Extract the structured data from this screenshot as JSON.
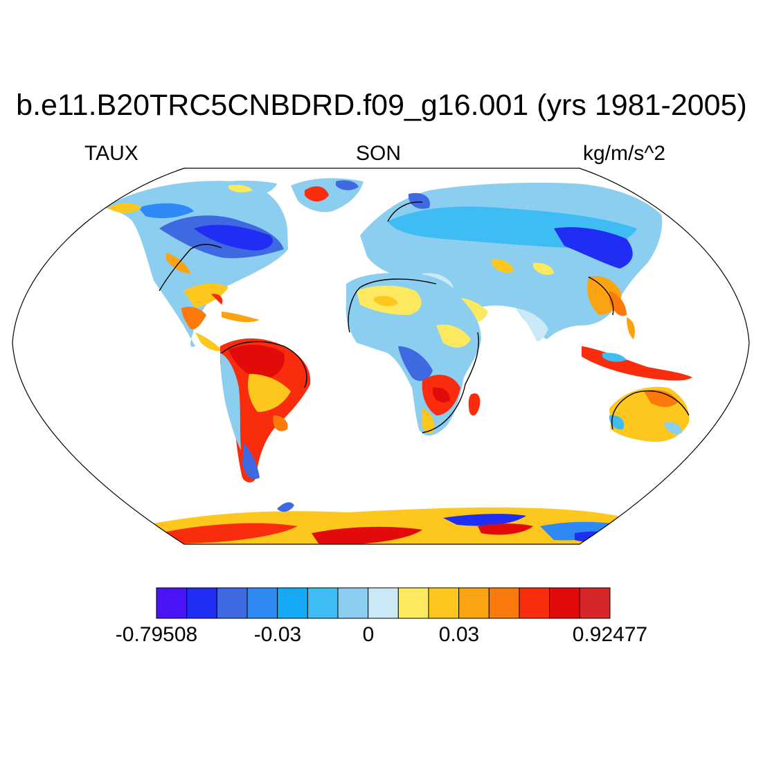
{
  "title": "b.e11.B20TRC5CNBDRD.f09_g16.001 (yrs 1981-2005)",
  "left_string": "TAUX",
  "center_string": "SON",
  "right_string": "kg/m/s^2",
  "projection": "Robinson",
  "colorbar": {
    "colors": [
      "#4a14f6",
      "#1f2ef2",
      "#3f69e0",
      "#2e89f4",
      "#16aaf6",
      "#3fbcf3",
      "#8ccef0",
      "#cbe8f6",
      "#fde95f",
      "#fdc71e",
      "#fca311",
      "#fc7a0c",
      "#f92d0d",
      "#e30a0a",
      "#d6262a"
    ],
    "tick_labels": [
      "-0.79508",
      "-0.03",
      "0",
      "0.03",
      "0.92477"
    ]
  }
}
